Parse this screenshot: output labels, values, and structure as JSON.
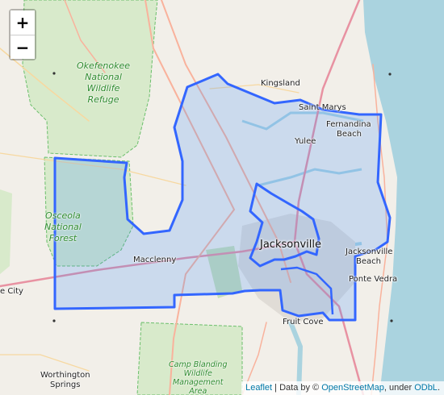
{
  "map": {
    "zoom_in_label": "+",
    "zoom_out_label": "−",
    "attribution": {
      "leaflet": "Leaflet",
      "sep": " | Data by © ",
      "osm": "OpenStreetMap",
      "under": ", under ",
      "odbl": "ODbL",
      "end": "."
    },
    "places": {
      "kingsland": "Kingsland",
      "st_marys": "Saint Marys",
      "fernandina_1": "Fernandina",
      "fernandina_2": "Beach",
      "yulee": "Yulee",
      "jacksonville": "Jacksonville",
      "jax_beach_1": "Jacksonville",
      "jax_beach_2": "Beach",
      "ponte_vedra": "Ponte Vedra",
      "macclenny": "Macclenny",
      "fruit_cove": "Fruit Cove",
      "worthington_1": "Worthington",
      "worthington_2": "Springs",
      "city_edge": "e City"
    },
    "parks": {
      "okefenokee": [
        "Okefenokee",
        "National",
        "Wildlife",
        "Refuge"
      ],
      "osceola": [
        "Osceola",
        "National",
        "Forest"
      ],
      "camp_blanding": [
        "Camp Blanding",
        "Wildlife",
        "Management",
        "Area"
      ]
    },
    "colors": {
      "land": "#f2efe9",
      "ocean": "#aad3df",
      "forest": "#d6e8c6",
      "region_fill": "#3388ff",
      "region_stroke": "#3366ff",
      "major_road": "#e892a2",
      "primary_road": "#f9b29c",
      "secondary_road": "#f7fabf"
    }
  }
}
